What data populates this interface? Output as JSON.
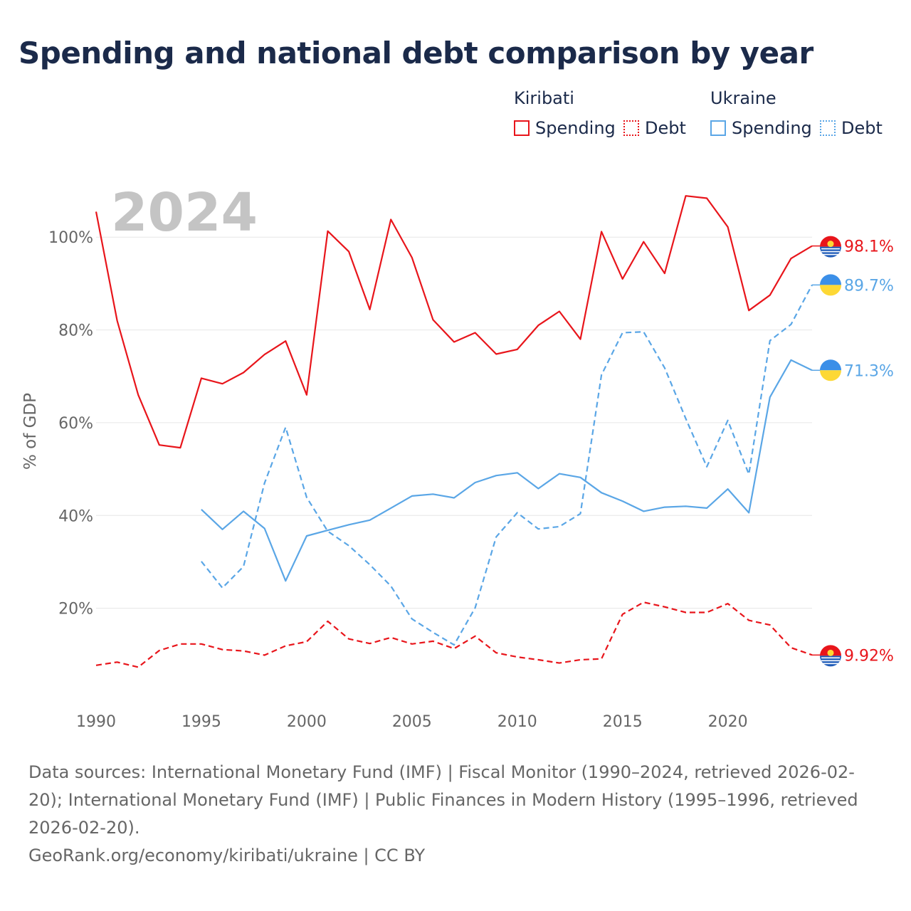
{
  "title": "Spending and national debt comparison by year",
  "year_watermark": "2024",
  "legend": {
    "groups": [
      {
        "name": "Kiribati",
        "color": "#e8151b",
        "items": [
          "Spending",
          "Debt"
        ]
      },
      {
        "name": "Ukraine",
        "color": "#5aa6e6",
        "items": [
          "Spending",
          "Debt"
        ]
      }
    ]
  },
  "chart_data": {
    "type": "line",
    "title": "Spending and national debt comparison by year",
    "xlabel": "",
    "ylabel": "% of GDP",
    "xlim": [
      1990,
      2024
    ],
    "ylim": [
      0,
      112
    ],
    "x_ticks": [
      1990,
      1995,
      2000,
      2005,
      2010,
      2015,
      2020
    ],
    "y_ticks": [
      20,
      40,
      60,
      80,
      100
    ],
    "y_tick_labels": [
      "20%",
      "40%",
      "60%",
      "80%",
      "100%"
    ],
    "grid": true,
    "series": [
      {
        "name": "Kiribati Spending",
        "country": "Kiribati",
        "metric": "Spending",
        "color": "#e8151b",
        "style": "solid",
        "start": 1990,
        "values": [
          105.5,
          82,
          66,
          55.2,
          54.6,
          69.6,
          68.4,
          70.8,
          74.7,
          77.6,
          66,
          101.3,
          96.9,
          84.4,
          103.8,
          95.6,
          82.2,
          77.4,
          79.4,
          74.8,
          75.8,
          81,
          84,
          78,
          101.2,
          91,
          99,
          92.2,
          108.9,
          108.4,
          102.2,
          84.2,
          87.5,
          95.4,
          98.1
        ],
        "end_label": "98.1%"
      },
      {
        "name": "Kiribati Debt",
        "country": "Kiribati",
        "metric": "Debt",
        "color": "#e8151b",
        "style": "dashed",
        "start": 1990,
        "values": [
          7.7,
          8.4,
          7.3,
          10.9,
          12.3,
          12.3,
          11.1,
          10.8,
          9.9,
          11.9,
          12.8,
          17.2,
          13.4,
          12.4,
          13.7,
          12.3,
          12.9,
          11.3,
          14,
          10.4,
          9.5,
          8.9,
          8.2,
          8.9,
          9.1,
          18.7,
          21.3,
          20.3,
          19.1,
          19.1,
          21,
          17.4,
          16.4,
          11.5,
          9.92
        ],
        "end_label": "9.92%"
      },
      {
        "name": "Ukraine Spending",
        "country": "Ukraine",
        "metric": "Spending",
        "color": "#5aa6e6",
        "style": "solid",
        "start": 1995,
        "values": [
          41.3,
          37,
          40.9,
          37.2,
          25.9,
          35.6,
          36.8,
          38,
          39,
          41.6,
          44.2,
          44.6,
          43.8,
          47.1,
          48.6,
          49.2,
          45.8,
          49,
          48.2,
          44.9,
          43.1,
          40.9,
          41.8,
          42,
          41.6,
          45.7,
          40.6,
          65.5,
          73.5,
          71.3
        ],
        "end_label": "71.3%"
      },
      {
        "name": "Ukraine Debt",
        "country": "Ukraine",
        "metric": "Debt",
        "color": "#5aa6e6",
        "style": "dashed",
        "start": 1995,
        "values": [
          30.1,
          24.4,
          29,
          47,
          59,
          43.9,
          36.6,
          33.5,
          29.4,
          24.8,
          17.7,
          14.8,
          12.1,
          20.1,
          35.4,
          40.6,
          37.1,
          37.6,
          40.4,
          70.3,
          79.4,
          79.6,
          71.8,
          60.9,
          50.5,
          60.5,
          48.9,
          77.7,
          81.2,
          89.7
        ],
        "end_label": "89.7%"
      }
    ]
  },
  "footer": {
    "sources": "Data sources: International Monetary Fund (IMF) | Fiscal Monitor (1990–2024, retrieved 2026-02-20); International Monetary Fund (IMF) | Public Finances in Modern History (1995–1996, retrieved 2026-02-20).",
    "credit": "GeoRank.org/economy/kiribati/ukraine | CC BY"
  }
}
